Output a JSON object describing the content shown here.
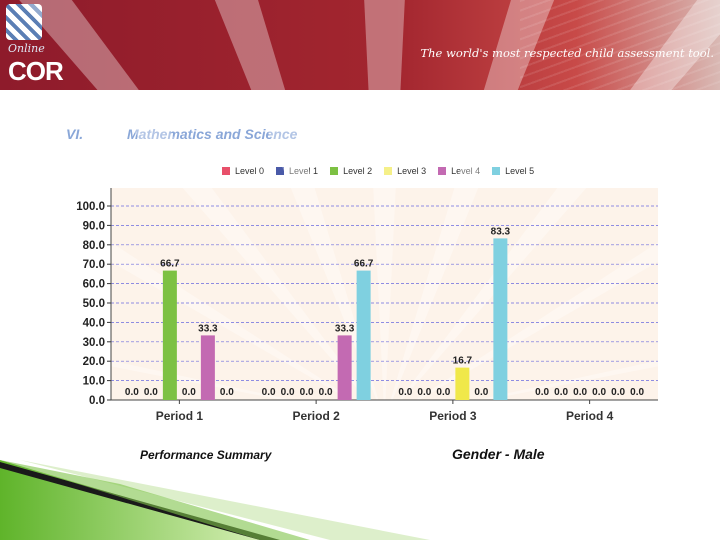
{
  "header": {
    "logo_online": "Online",
    "logo_cor": "COR",
    "tagline": "The world's most respected child assessment tool.",
    "accent_color": "#9b2233"
  },
  "section": {
    "number": "VI.",
    "title": "Mathematics and Science"
  },
  "footer": {
    "performance_summary": "Performance Summary",
    "gender": "Gender - Male"
  },
  "chart_data": {
    "type": "bar",
    "title": "",
    "xlabel": "",
    "ylabel": "",
    "ylim": [
      0,
      100
    ],
    "yticks": [
      "0.0",
      "10.0",
      "20.0",
      "30.0",
      "40.0",
      "50.0",
      "60.0",
      "70.0",
      "80.0",
      "90.0",
      "100.0"
    ],
    "grid": true,
    "legend_position": "top",
    "categories": [
      "Period 1",
      "Period 2",
      "Period 3",
      "Period 4"
    ],
    "series": [
      {
        "name": "Level 0",
        "color": "#e8506a",
        "values": [
          0.0,
          0.0,
          0.0,
          0.0
        ],
        "labels": [
          "0.0",
          "0.0",
          "0.0",
          "0.0"
        ]
      },
      {
        "name": "Level 1",
        "color": "#4a5aa8",
        "values": [
          0.0,
          0.0,
          0.0,
          0.0
        ],
        "labels": [
          "0.0",
          "0.0",
          "0.0",
          "0.0"
        ]
      },
      {
        "name": "Level 2",
        "color": "#7dc143",
        "values": [
          66.7,
          0.0,
          0.0,
          0.0
        ],
        "labels": [
          "66.7",
          "0.0",
          "0.0",
          "0.0"
        ]
      },
      {
        "name": "Level 3",
        "color": "#f0e84a",
        "values": [
          0.0,
          0.0,
          16.7,
          0.0
        ],
        "labels": [
          "0.0",
          "0.0",
          "16.7",
          "0.0"
        ]
      },
      {
        "name": "Level 4",
        "color": "#c36ab2",
        "values": [
          33.3,
          33.3,
          0.0,
          0.0
        ],
        "labels": [
          "33.3",
          "33.3",
          "0.0",
          "0.0"
        ]
      },
      {
        "name": "Level 5",
        "color": "#7fd0e0",
        "values": [
          0.0,
          66.7,
          83.3,
          0.0
        ],
        "labels": [
          "0.0",
          "66.7",
          "83.3",
          "0.0"
        ]
      }
    ]
  }
}
